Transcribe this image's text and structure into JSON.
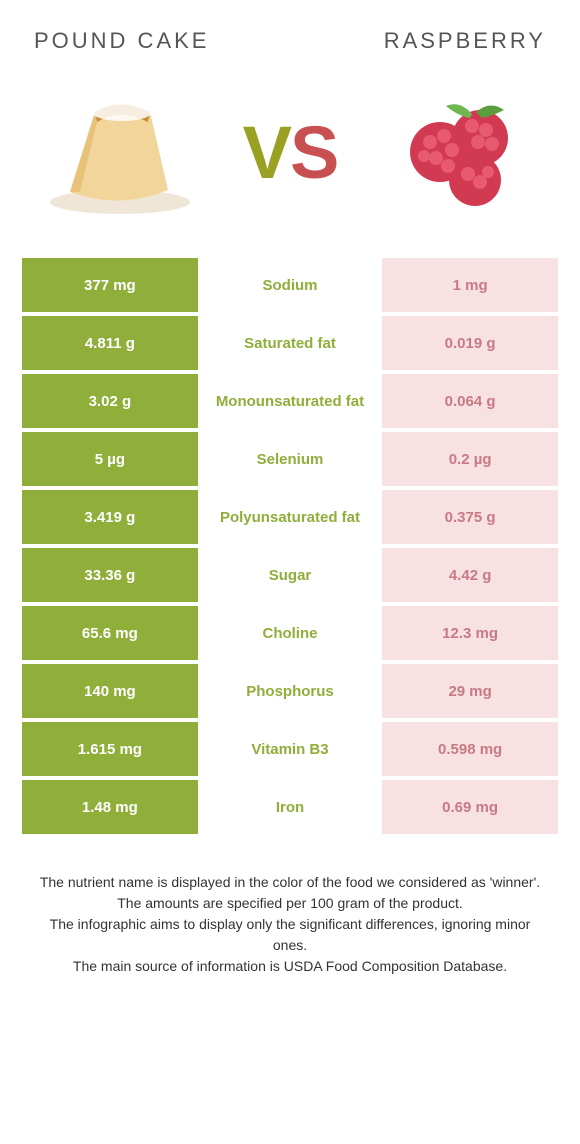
{
  "header": {
    "left_title": "POUND CAKE",
    "right_title": "RASPBERRY",
    "vs_v": "V",
    "vs_s": "S"
  },
  "colors": {
    "left_food": "#8fae3a",
    "right_food": "#d14b5b",
    "row_gap_bg": "#ffffff",
    "left_bar": "#8fae3a",
    "right_bar_light": "#f7e1e3",
    "label_green": "#8fae3a",
    "label_red": "#c77a84",
    "title_text": "#666666"
  },
  "rows": [
    {
      "label": "Sodium",
      "left": "377 mg",
      "right": "1 mg",
      "winner": "left"
    },
    {
      "label": "Saturated fat",
      "left": "4.811 g",
      "right": "0.019 g",
      "winner": "left"
    },
    {
      "label": "Monounsaturated fat",
      "left": "3.02 g",
      "right": "0.064 g",
      "winner": "left"
    },
    {
      "label": "Selenium",
      "left": "5 µg",
      "right": "0.2 µg",
      "winner": "left"
    },
    {
      "label": "Polyunsaturated fat",
      "left": "3.419 g",
      "right": "0.375 g",
      "winner": "left"
    },
    {
      "label": "Sugar",
      "left": "33.36 g",
      "right": "4.42 g",
      "winner": "left"
    },
    {
      "label": "Choline",
      "left": "65.6 mg",
      "right": "12.3 mg",
      "winner": "left"
    },
    {
      "label": "Phosphorus",
      "left": "140 mg",
      "right": "29 mg",
      "winner": "left"
    },
    {
      "label": "Vitamin B3",
      "left": "1.615 mg",
      "right": "0.598 mg",
      "winner": "left"
    },
    {
      "label": "Iron",
      "left": "1.48 mg",
      "right": "0.69 mg",
      "winner": "left"
    }
  ],
  "footnote": {
    "l1": "The nutrient name is displayed in the color of the food we considered as 'winner'.",
    "l2": "The amounts are specified per 100 gram of the product.",
    "l3": "The infographic aims to display only the significant differences, ignoring minor ones.",
    "l4": "The main source of information is USDA Food Composition Database."
  }
}
